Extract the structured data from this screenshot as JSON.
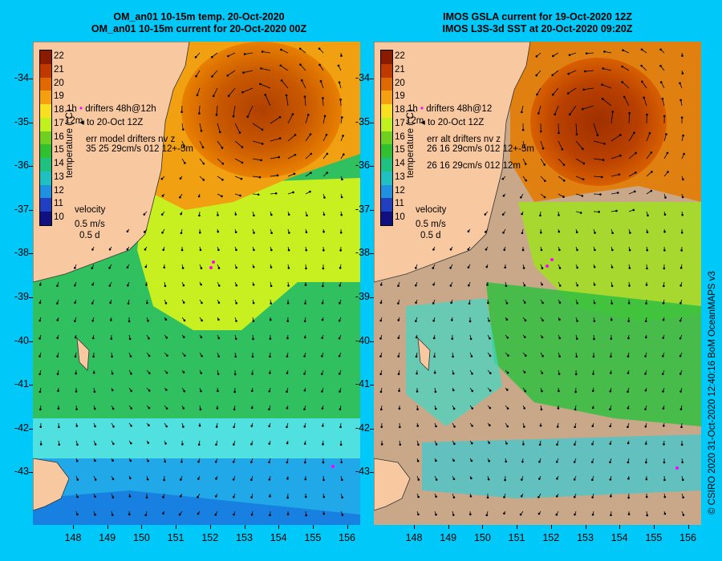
{
  "left_panel": {
    "title_line1": "OM_an01 10-15m temp. 20-Oct-2020",
    "title_line2": "OM_an01 10-15m current for 20-Oct-2020 00Z",
    "legend_drifters": "drifters 48h@12h",
    "legend_to": "to 20-Oct 12Z",
    "legend_err_title": "err model drifters nv z",
    "legend_err_values": "35 25 29cm/s 012 12+-5m",
    "legend_err_values2": "",
    "legend_left_top": "1h",
    "legend_left_bottom": "12m",
    "velocity_label": "velocity",
    "velocity_scale": "0.5 m/s",
    "velocity_days": "0.5 d"
  },
  "right_panel": {
    "title_line1": "IMOS GSLA current for 19-Oct-2020 12Z",
    "title_line2": "IMOS L3S-3d SST at 20-Oct-2020 09:20Z",
    "legend_drifters": "drifters 48h@12",
    "legend_to": "to 20-Oct 12Z",
    "legend_err_title": "err alt drifters nv z",
    "legend_err_values": "26 16 29cm/s 012 12+-5m",
    "legend_err_values2": "26 16 29cm/s 012 12m",
    "legend_left_top": "1h",
    "legend_left_bottom": "12m",
    "velocity_label": "velocity",
    "velocity_scale": "0.5 m/s",
    "velocity_days": "0.5 d"
  },
  "colorbar": {
    "title": "temperature (°C)",
    "labels": [
      "22",
      "21",
      "20",
      "19",
      "18",
      "17",
      "16",
      "15",
      "14",
      "13",
      "12",
      "11",
      "10"
    ],
    "colors": [
      "#8a1a00",
      "#c03a00",
      "#e06a00",
      "#f4a010",
      "#f8e020",
      "#c0f020",
      "#70d020",
      "#30c030",
      "#20c080",
      "#20c0c0",
      "#2090e0",
      "#2040c0",
      "#101080"
    ]
  },
  "y_axis_labels": [
    "-34",
    "-35",
    "-36",
    "-37",
    "-38",
    "-39",
    "-40",
    "-41",
    "-42",
    "-43"
  ],
  "x_axis_labels": [
    "148",
    "149",
    "150",
    "151",
    "152",
    "153",
    "154",
    "155",
    "156"
  ],
  "credit": "© CSIRO 2020   31-Oct-2020 12:40:16 BoM OceanMAPS v3",
  "colors": {
    "background": "#00c8f8",
    "land": "#f8c8a0",
    "missing_sst": "#c8a888",
    "drifter": "#ff00ff"
  }
}
